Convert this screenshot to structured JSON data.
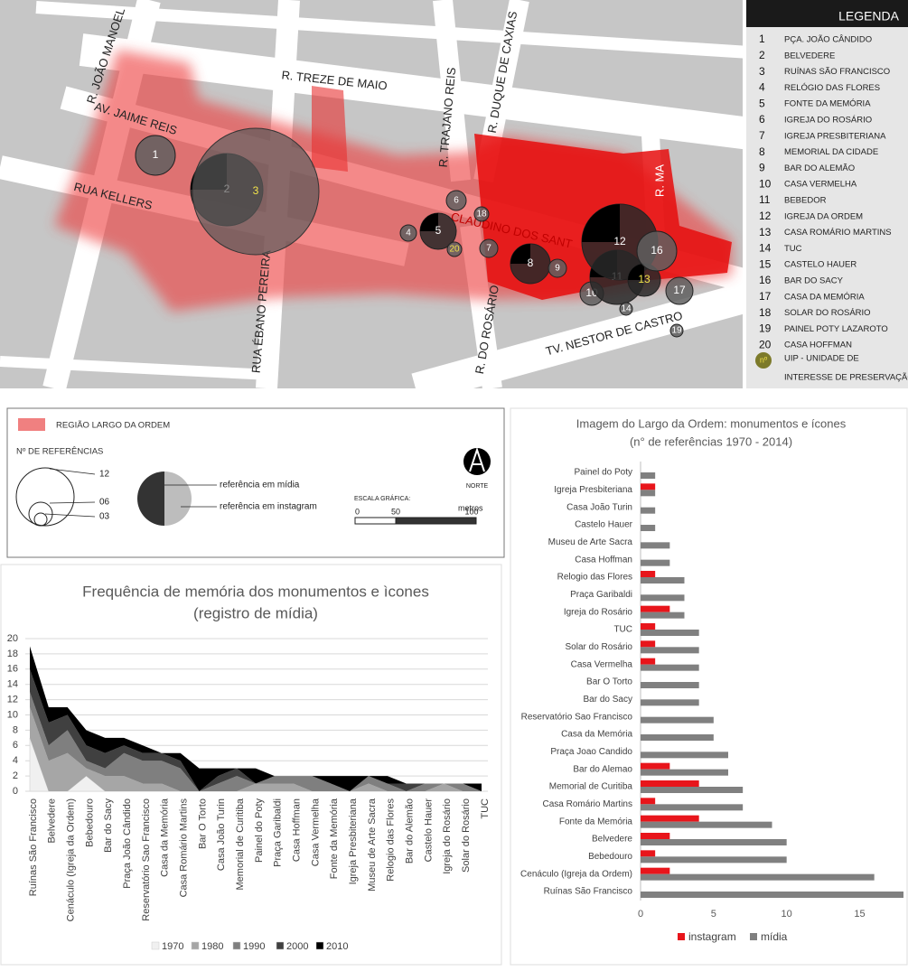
{
  "map": {
    "streets": [
      "R. TREZE DE MAIO",
      "AV. JAIME REIS",
      "R. JOÃO MANOEL",
      "RUA KELLERS",
      "RUA ÉBANO PEREIRA",
      "R. TRAJANO REIS",
      "R. DUQUE DE CAXIAS",
      "CLAUDINO DOS SANT",
      "R. DO ROSÁRIO",
      "TV. NESTOR DE CASTRO",
      "R. MA"
    ],
    "markers": [
      {
        "label": "1"
      },
      {
        "label": "2"
      },
      {
        "label": "3",
        "uip": true
      },
      {
        "label": "4"
      },
      {
        "label": "5"
      },
      {
        "label": "6"
      },
      {
        "label": "7"
      },
      {
        "label": "8"
      },
      {
        "label": "9"
      },
      {
        "label": "10"
      },
      {
        "label": "11"
      },
      {
        "label": "12"
      },
      {
        "label": "13",
        "uip": true
      },
      {
        "label": "14"
      },
      {
        "label": "16"
      },
      {
        "label": "17"
      },
      {
        "label": "18"
      },
      {
        "label": "19"
      },
      {
        "label": "20",
        "uip": true
      }
    ]
  },
  "legend": {
    "title": "LEGENDA",
    "items": [
      {
        "n": 1,
        "name": "PÇA. JOÃO CÂNDIDO"
      },
      {
        "n": 2,
        "name": "BELVEDERE"
      },
      {
        "n": 3,
        "name": "RUÍNAS SÃO FRANCISCO"
      },
      {
        "n": 4,
        "name": "RELÓGIO DAS FLORES"
      },
      {
        "n": 5,
        "name": "FONTE DA MEMÓRIA"
      },
      {
        "n": 6,
        "name": "IGREJA DO ROSÁRIO"
      },
      {
        "n": 7,
        "name": "IGREJA PRESBITERIANA"
      },
      {
        "n": 8,
        "name": "MEMORIAL DA CIDADE"
      },
      {
        "n": 9,
        "name": "BAR DO ALEMÃO"
      },
      {
        "n": 10,
        "name": "CASA VERMELHA"
      },
      {
        "n": 11,
        "name": "BEBEDOR"
      },
      {
        "n": 12,
        "name": "IGREJA DA ORDEM"
      },
      {
        "n": 13,
        "name": "CASA ROMÁRIO MARTINS"
      },
      {
        "n": 14,
        "name": "TUC"
      },
      {
        "n": 15,
        "name": "CASTELO HAUER"
      },
      {
        "n": 16,
        "name": "BAR DO SACY"
      },
      {
        "n": 17,
        "name": "CASA DA MEMÓRIA"
      },
      {
        "n": 18,
        "name": "SOLAR DO ROSÁRIO"
      },
      {
        "n": 19,
        "name": "PAINEL POTY LAZAROTO"
      },
      {
        "n": 20,
        "name": "CASA HOFFMAN"
      }
    ],
    "uip_symbol": "nº",
    "uip_text": [
      "UIP - UNIDADE DE",
      "INTERESSE DE PRESERVAÇÃO"
    ]
  },
  "key": {
    "region": "REGIÃO LARGO DA ORDEM",
    "refs_title": "Nº DE REFERÊNCIAS",
    "ref_sizes": [
      "12",
      "06",
      "03"
    ],
    "media": "referência em mídia",
    "instagram": "referência em instagram",
    "north": "NORTE",
    "scale_title": "ESCALA GRÁFICA:",
    "scale_unit": "metros",
    "scale_ticks": [
      0,
      50,
      100
    ]
  },
  "chart_data": [
    {
      "type": "area",
      "stacked": true,
      "title": "Frequência de memória dos monumentos e ìcones",
      "subtitle": "(registro de mídia)",
      "categories": [
        "Ruínas São Francisco",
        "Belvedere",
        "Cenáculo (Igreja da Ordem)",
        "Bebedouro",
        "Bar do Sacy",
        "Praça João Cândido",
        "Reservatório Sao Francisco",
        "Casa da Memória",
        "Casa Romário Martins",
        "Bar O Torto",
        "Casa João Turin",
        "Memorial de Curitiba",
        "Painel do Poty",
        "Praça Garibaldi",
        "Casa Hoffman",
        "Casa Vermelha",
        "Fonte da Memória",
        "Igreja Presbiteriana",
        "Museu de Arte Sacra",
        "Relogio das Flores",
        "Bar do Alemão",
        "Castelo Hauer",
        "Igreja do Rosário",
        "Solar do Rosário",
        "TUC"
      ],
      "series": [
        {
          "name": "1970",
          "color": "#f0f0f0",
          "values": [
            7,
            0,
            0,
            2,
            0,
            0,
            0,
            0,
            0,
            0,
            0,
            0,
            0,
            0,
            0,
            0,
            0,
            0,
            0,
            0,
            0,
            0,
            0,
            0,
            0
          ]
        },
        {
          "name": "1980",
          "color": "#a6a6a6",
          "values": [
            4,
            4,
            5,
            1,
            2,
            2,
            1,
            1,
            0,
            0,
            0,
            0,
            1,
            1,
            1,
            0,
            0,
            0,
            1,
            0,
            0,
            0,
            1,
            0,
            0
          ]
        },
        {
          "name": "1990",
          "color": "#7f7f7f",
          "values": [
            2,
            2,
            3,
            1,
            1,
            3,
            3,
            3,
            3,
            0,
            1,
            2,
            0,
            1,
            1,
            2,
            1,
            0,
            1,
            1,
            0,
            1,
            0,
            1,
            0
          ]
        },
        {
          "name": "2000",
          "color": "#404040",
          "values": [
            3,
            3,
            2,
            2,
            2,
            1,
            1,
            1,
            1,
            0,
            1,
            1,
            0,
            0,
            0,
            0,
            0,
            0,
            0,
            0,
            1,
            0,
            0,
            0,
            0
          ]
        },
        {
          "name": "2010",
          "color": "#000000",
          "values": [
            3,
            2,
            1,
            2,
            2,
            1,
            1,
            0,
            1,
            3,
            1,
            0,
            2,
            0,
            0,
            0,
            1,
            2,
            0,
            1,
            0,
            0,
            0,
            0,
            1
          ]
        }
      ],
      "ylim": [
        0,
        20
      ],
      "yticks": [
        0,
        2,
        4,
        6,
        8,
        10,
        12,
        14,
        16,
        18,
        20
      ],
      "grid": true
    },
    {
      "type": "bar",
      "orientation": "horizontal",
      "title": "Imagem do Largo da Ordem: monumentos e ícones",
      "subtitle": "(n° de referências 1970 - 2014)",
      "categories": [
        "Painel do Poty",
        "Igreja Presbiteriana",
        "Casa João Turin",
        "Castelo Hauer",
        "Museu de Arte Sacra",
        "Casa Hoffman",
        "Relogio das Flores",
        "Praça Garibaldi",
        "Igreja do Rosário",
        "TUC",
        "Solar do Rosário",
        "Casa Vermelha",
        "Bar O Torto",
        "Bar do Sacy",
        "Reservatório Sao Francisco",
        "Casa da Memória",
        "Praça Joao Candido",
        "Bar do Alemao",
        "Memorial de Curitiba",
        "Casa Romário Martins",
        "Fonte da Memória",
        "Belvedere",
        "Bebedouro",
        "Cenáculo (Igreja da Ordem)",
        "Ruínas São Francisco"
      ],
      "series": [
        {
          "name": "instagram",
          "color": "#e8151b",
          "values": [
            0,
            1,
            0,
            0,
            0,
            0,
            1,
            0,
            2,
            1,
            1,
            1,
            0,
            0,
            0,
            0,
            0,
            2,
            4,
            1,
            4,
            2,
            1,
            2,
            0
          ]
        },
        {
          "name": "mídia",
          "color": "#808080",
          "values": [
            1,
            1,
            1,
            1,
            2,
            2,
            3,
            3,
            3,
            4,
            4,
            4,
            4,
            4,
            5,
            5,
            6,
            6,
            7,
            7,
            9,
            10,
            10,
            16,
            18
          ]
        }
      ],
      "xlim": [
        0,
        18
      ],
      "xticks": [
        0,
        5,
        10,
        15
      ],
      "legend": "bottom"
    }
  ]
}
